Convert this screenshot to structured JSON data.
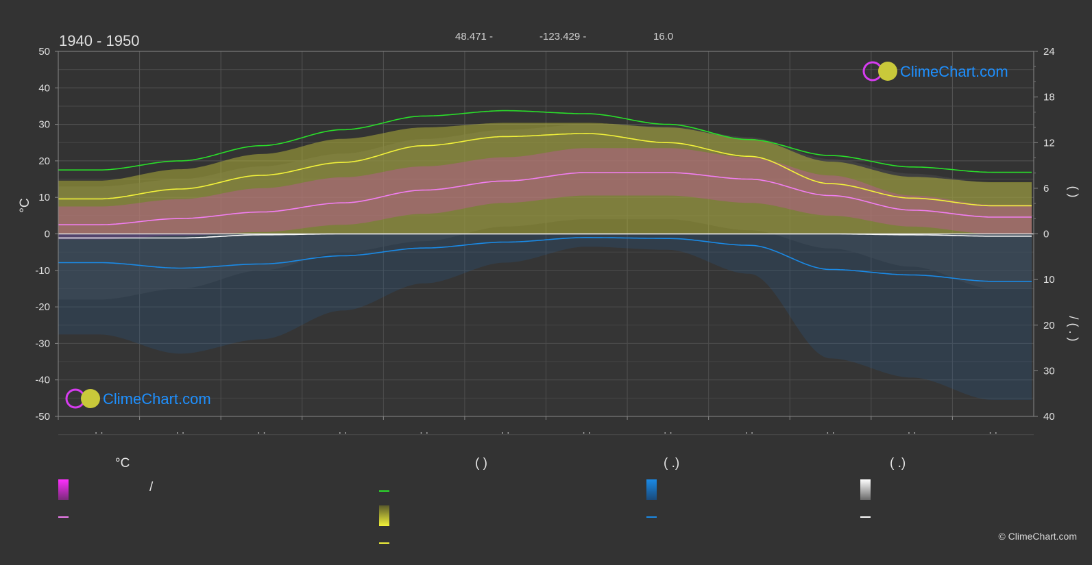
{
  "header": {
    "period": "1940 - 1950",
    "latitude": "48.471 -",
    "longitude": "-123.429 -",
    "elevation": "16.0"
  },
  "colors": {
    "background": "#333333",
    "daylight_line": "#2adf2a",
    "sunshine_line": "#f2f23a",
    "temp_mean_line": "#f27ef2",
    "precip_line": "#1a8ae6",
    "snow_line": "#ffffff",
    "temp_band": "#ff2eff",
    "sunshine_band": "#c9c93a",
    "precip_band": "#1a7ad6",
    "snow_band": "#9a9a9a",
    "brand": "#1e90ff"
  },
  "chart_data": {
    "type": "line",
    "x_tick_labels": [
      ". .",
      ". .",
      ". .",
      ". .",
      ". .",
      ". .",
      ". .",
      ". .",
      ". .",
      ". .",
      ". .",
      ". ."
    ],
    "y_left": {
      "label": "°C",
      "ylim": [
        -50,
        50
      ],
      "ticks": [
        50,
        40,
        30,
        20,
        10,
        0,
        -10,
        -20,
        -30,
        -40,
        -50
      ]
    },
    "y_right_top": {
      "ylim": [
        0,
        24
      ],
      "ticks": [
        24,
        18,
        12,
        6,
        0
      ],
      "label": "(    )"
    },
    "y_right_bottom": {
      "ylim": [
        0,
        40
      ],
      "ticks": [
        10,
        20,
        30,
        40
      ],
      "label": "/    (  .  )"
    },
    "series": [
      {
        "key": "daylight",
        "axis": "right_top",
        "values": [
          8.4,
          9.6,
          11.6,
          13.7,
          15.5,
          16.2,
          15.8,
          14.4,
          12.4,
          10.3,
          8.8,
          8.1
        ]
      },
      {
        "key": "sunshine",
        "axis": "right_top",
        "values": [
          4.6,
          5.9,
          7.7,
          9.4,
          11.6,
          12.8,
          13.2,
          12.0,
          10.2,
          6.6,
          4.7,
          3.7
        ]
      },
      {
        "key": "temp_mean",
        "axis": "left",
        "values": [
          2.5,
          4.2,
          6.0,
          8.5,
          12.0,
          14.5,
          16.8,
          16.8,
          15.0,
          10.5,
          6.5,
          4.6
        ]
      },
      {
        "key": "precip",
        "axis": "right_bottom",
        "values": [
          6.3,
          7.5,
          6.6,
          4.8,
          3.1,
          1.8,
          0.8,
          1.0,
          2.5,
          7.8,
          9.0,
          10.4
        ]
      },
      {
        "key": "snow",
        "axis": "right_bottom",
        "values": [
          0.9,
          0.9,
          0.2,
          0.0,
          0.0,
          0.0,
          0.0,
          0.0,
          0.0,
          0.0,
          0.2,
          0.5
        ]
      }
    ],
    "bands": {
      "temp_max": [
        7.5,
        9.5,
        12.5,
        15.5,
        18.5,
        21.0,
        23.5,
        23.5,
        21.0,
        16.0,
        10.5,
        8.0
      ],
      "temp_min": [
        -1.5,
        -0.5,
        0.5,
        2.5,
        5.5,
        8.5,
        10.5,
        10.5,
        8.5,
        5.0,
        2.0,
        0.0
      ],
      "temp_daily_max_top": [
        13.0,
        15.0,
        18.5,
        22.0,
        26.0,
        28.5,
        30.0,
        29.5,
        26.5,
        20.5,
        16.5,
        14.0
      ],
      "temp_daily_min_bottom": [
        -18.0,
        -15.0,
        -10.0,
        -5.0,
        -2.0,
        2.0,
        4.0,
        4.0,
        1.0,
        -4.0,
        -9.0,
        -15.0
      ],
      "sunshine_top": [
        7.0,
        8.5,
        10.5,
        12.5,
        14.0,
        14.6,
        14.6,
        14.0,
        12.5,
        9.5,
        7.5,
        6.8
      ]
    }
  },
  "legend": {
    "col1_header": "°C",
    "col1_slash": "/",
    "col2_header": "(          )",
    "col3_header": "(   .)",
    "col4_header": "(   .)"
  },
  "logos": {
    "top_right_text": "ClimeChart.com",
    "bottom_left_text": "ClimeChart.com"
  },
  "footer": {
    "copyright": "© ClimeChart.com"
  }
}
